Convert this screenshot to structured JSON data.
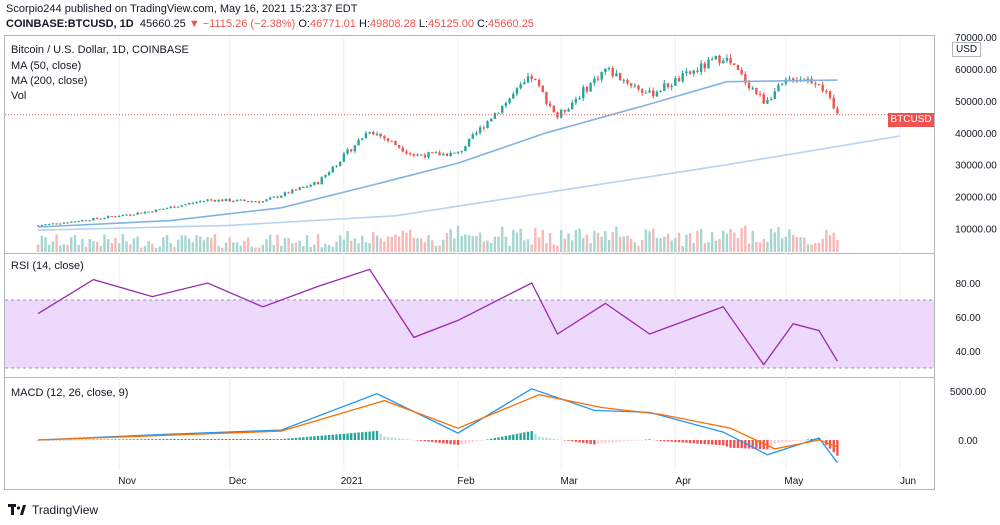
{
  "header": {
    "publisher_line": "Scorpio244 published on TradingView.com, May 16, 2021 15:23:37 EDT",
    "symbol": "COINBASE:BTCUSD, 1D",
    "last": "45660.25",
    "change": "▼ −1115.26 (−2.38%)",
    "o_label": "O:",
    "o_value": "46771.01",
    "h_label": "H:",
    "h_value": "49808.28",
    "l_label": "L:",
    "l_value": "45125.00",
    "c_label": "C:",
    "c_value": "45660.25"
  },
  "panes": {
    "price_title": "Bitcoin / U.S. Dollar, 1D, COINBASE",
    "ma50_label": "MA (50, close)",
    "ma200_label": "MA (200, close)",
    "vol_label": "Vol",
    "rsi_label": "RSI (14, close)",
    "macd_label": "MACD (12, 26, close, 9)"
  },
  "currency_badge": "USD",
  "price_tag": "BTCUSD",
  "footer_brand": "TradingView",
  "colors": {
    "up": "#26a69a",
    "down": "#ef5350",
    "ma50": "#80b3e0",
    "ma200": "#b7d3ee",
    "rsi": "#9c27b0",
    "rsi_band": "#ecd9fb",
    "macd": "#2196f3",
    "signal": "#ff6d00"
  },
  "chart_data": [
    {
      "type": "line",
      "title": "Bitcoin / U.S. Dollar, 1D, COINBASE",
      "x_ticks": [
        "Nov",
        "Dec",
        "2021",
        "Feb",
        "Mar",
        "Apr",
        "May",
        "Jun"
      ],
      "y_ticks": [
        10000,
        20000,
        30000,
        40000,
        50000,
        60000,
        70000
      ],
      "ylim": [
        0,
        72000
      ],
      "series": [
        {
          "name": "BTCUSD",
          "x": [
            "2020-10-10",
            "2020-10-25",
            "2020-11-10",
            "2020-11-25",
            "2020-12-10",
            "2020-12-25",
            "2021-01-08",
            "2021-01-20",
            "2021-02-01",
            "2021-02-10",
            "2021-02-21",
            "2021-02-28",
            "2021-03-13",
            "2021-03-25",
            "2021-04-14",
            "2021-04-25",
            "2021-05-03",
            "2021-05-10",
            "2021-05-15"
          ],
          "values": [
            11000,
            13000,
            15500,
            19000,
            18500,
            24500,
            41000,
            33000,
            33500,
            45000,
            57500,
            45000,
            60000,
            52000,
            64000,
            50000,
            57500,
            56000,
            45660
          ]
        },
        {
          "name": "MA (50, close)",
          "x": [
            "2020-10-10",
            "2020-11-15",
            "2020-12-15",
            "2021-01-10",
            "2021-02-01",
            "2021-02-25",
            "2021-03-25",
            "2021-04-15",
            "2021-05-15"
          ],
          "values": [
            10500,
            12500,
            16500,
            24000,
            30500,
            40000,
            49000,
            56000,
            56500
          ]
        },
        {
          "name": "MA (200, close)",
          "x": [
            "2020-10-10",
            "2020-12-01",
            "2021-01-15",
            "2021-03-01",
            "2021-04-15",
            "2021-06-01"
          ],
          "values": [
            9500,
            11000,
            14000,
            22000,
            30000,
            39000
          ]
        }
      ]
    },
    {
      "type": "line",
      "title": "RSI (14, close)",
      "y_ticks": [
        40,
        60,
        80
      ],
      "band": [
        30,
        70
      ],
      "series": [
        {
          "name": "RSI (14, close)",
          "x": [
            "2020-10-10",
            "2020-10-25",
            "2020-11-10",
            "2020-11-25",
            "2020-12-10",
            "2020-12-25",
            "2021-01-08",
            "2021-01-20",
            "2021-02-01",
            "2021-02-21",
            "2021-02-28",
            "2021-03-13",
            "2021-03-25",
            "2021-04-14",
            "2021-04-25",
            "2021-05-03",
            "2021-05-10",
            "2021-05-15"
          ],
          "values": [
            62,
            82,
            72,
            80,
            66,
            78,
            88,
            48,
            58,
            80,
            50,
            68,
            50,
            66,
            32,
            56,
            52,
            34
          ]
        }
      ]
    },
    {
      "type": "bar",
      "title": "MACD (12, 26, close, 9)",
      "y_ticks": [
        0,
        5000
      ],
      "series": [
        {
          "name": "MACD",
          "x": [
            "2020-10-10",
            "2020-11-15",
            "2020-12-15",
            "2021-01-10",
            "2021-02-01",
            "2021-02-21",
            "2021-03-10",
            "2021-03-25",
            "2021-04-14",
            "2021-04-26",
            "2021-05-10",
            "2021-05-15"
          ],
          "values": [
            0,
            600,
            1000,
            4700,
            700,
            5200,
            3000,
            2800,
            800,
            -1500,
            200,
            -2300
          ]
        },
        {
          "name": "Signal",
          "x": [
            "2020-10-10",
            "2020-11-15",
            "2020-12-15",
            "2021-01-12",
            "2021-02-01",
            "2021-02-23",
            "2021-03-12",
            "2021-03-28",
            "2021-04-16",
            "2021-04-28",
            "2021-05-10",
            "2021-05-15"
          ],
          "values": [
            0,
            500,
            900,
            4000,
            1200,
            4600,
            3300,
            2600,
            1200,
            -900,
            0,
            -700
          ]
        }
      ]
    }
  ]
}
